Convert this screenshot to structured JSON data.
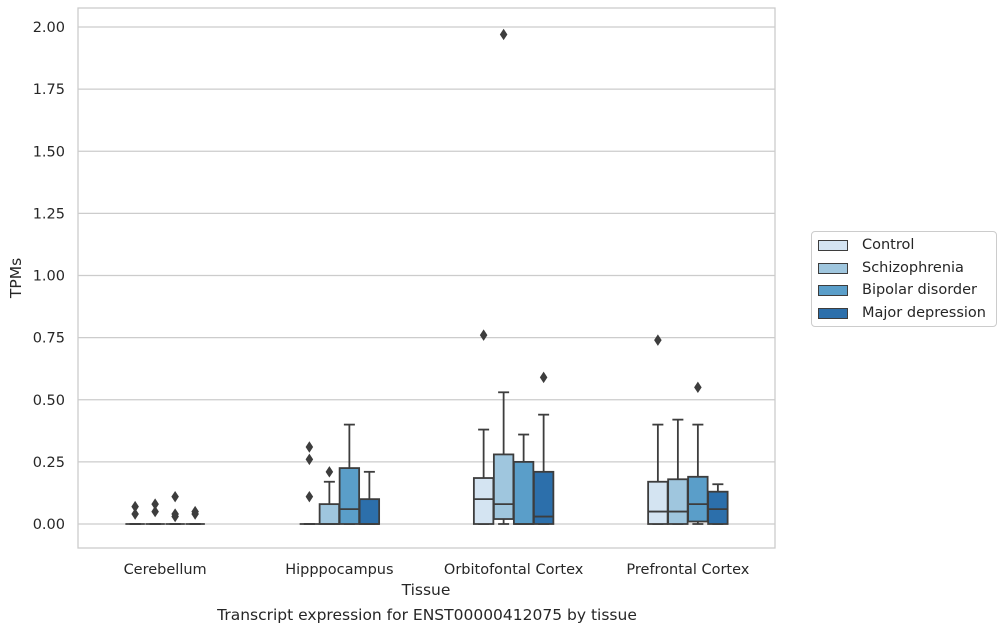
{
  "chart_data": {
    "type": "box",
    "xlabel": "Tissue",
    "ylabel": "TPMs",
    "caption": "Transcript expression for ENST00000412075 by tissue",
    "categories": [
      "Cerebellum",
      "Hipppocampus",
      "Orbitofontal Cortex",
      "Prefrontal Cortex"
    ],
    "ylim": [
      -0.1,
      2.07
    ],
    "yticks": [
      0.0,
      0.25,
      0.5,
      0.75,
      1.0,
      1.25,
      1.5,
      1.75,
      2.0
    ],
    "ytick_labels": [
      "0.00",
      "0.25",
      "0.50",
      "0.75",
      "1.00",
      "1.25",
      "1.50",
      "1.75",
      "2.00"
    ],
    "grid": "horizontal",
    "legend_position": "right",
    "series": [
      {
        "name": "Control",
        "color": "#d4e4f2",
        "boxes": [
          {
            "q1": 0,
            "median": 0,
            "q3": 0,
            "whisker_low": 0,
            "whisker_high": 0,
            "outliers": [
              0.04,
              0.07
            ]
          },
          {
            "q1": 0,
            "median": 0,
            "q3": 0,
            "whisker_low": 0,
            "whisker_high": 0,
            "outliers": [
              0.11,
              0.26,
              0.31
            ]
          },
          {
            "q1": 0,
            "median": 0.1,
            "q3": 0.185,
            "whisker_low": 0,
            "whisker_high": 0.38,
            "outliers": [
              0.76
            ]
          },
          {
            "q1": 0,
            "median": 0.05,
            "q3": 0.17,
            "whisker_low": 0,
            "whisker_high": 0.4,
            "outliers": [
              0.74
            ]
          }
        ]
      },
      {
        "name": "Schizophrenia",
        "color": "#9fc6de",
        "boxes": [
          {
            "q1": 0,
            "median": 0,
            "q3": 0,
            "whisker_low": 0,
            "whisker_high": 0,
            "outliers": [
              0.05,
              0.08
            ]
          },
          {
            "q1": 0,
            "median": 0,
            "q3": 0.08,
            "whisker_low": 0,
            "whisker_high": 0.17,
            "outliers": [
              0.21
            ]
          },
          {
            "q1": 0.02,
            "median": 0.08,
            "q3": 0.28,
            "whisker_low": 0,
            "whisker_high": 0.53,
            "outliers": [
              1.97
            ]
          },
          {
            "q1": 0,
            "median": 0.05,
            "q3": 0.18,
            "whisker_low": 0,
            "whisker_high": 0.42,
            "outliers": []
          }
        ]
      },
      {
        "name": "Bipolar disorder",
        "color": "#5a9ec9",
        "boxes": [
          {
            "q1": 0,
            "median": 0,
            "q3": 0,
            "whisker_low": 0,
            "whisker_high": 0,
            "outliers": [
              0.03,
              0.04,
              0.11
            ]
          },
          {
            "q1": 0,
            "median": 0.06,
            "q3": 0.225,
            "whisker_low": 0,
            "whisker_high": 0.4,
            "outliers": []
          },
          {
            "q1": 0,
            "median": 0,
            "q3": 0.25,
            "whisker_low": 0,
            "whisker_high": 0.36,
            "outliers": []
          },
          {
            "q1": 0.01,
            "median": 0.08,
            "q3": 0.19,
            "whisker_low": 0,
            "whisker_high": 0.4,
            "outliers": [
              0.55
            ]
          }
        ]
      },
      {
        "name": "Major depression",
        "color": "#2c6fab",
        "boxes": [
          {
            "q1": 0,
            "median": 0,
            "q3": 0,
            "whisker_low": 0,
            "whisker_high": 0,
            "outliers": [
              0.04,
              0.05
            ]
          },
          {
            "q1": 0,
            "median": 0,
            "q3": 0.1,
            "whisker_low": 0,
            "whisker_high": 0.21,
            "outliers": []
          },
          {
            "q1": 0,
            "median": 0.03,
            "q3": 0.21,
            "whisker_low": 0,
            "whisker_high": 0.44,
            "outliers": [
              0.59
            ]
          },
          {
            "q1": 0,
            "median": 0.06,
            "q3": 0.13,
            "whisker_low": 0,
            "whisker_high": 0.16,
            "outliers": []
          }
        ]
      }
    ]
  }
}
